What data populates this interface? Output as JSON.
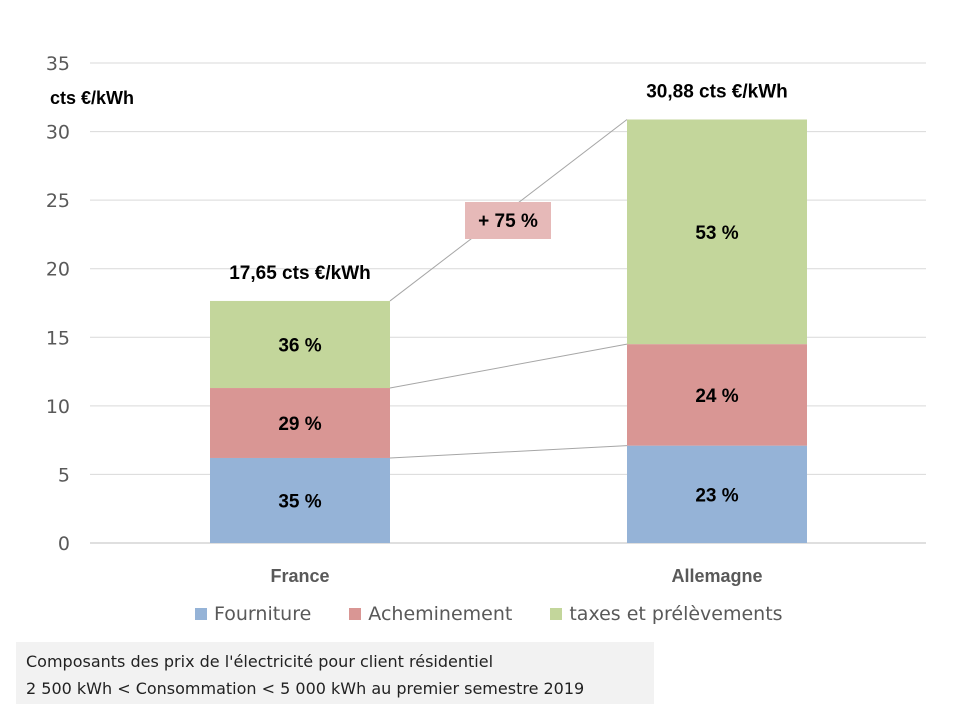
{
  "chart_data": {
    "type": "bar",
    "stacked": true,
    "categories": [
      "France",
      "Allemagne"
    ],
    "series": [
      {
        "name": "Fourniture",
        "color": "#95b3d7",
        "values": [
          6.2,
          7.1
        ],
        "labels": [
          "35 %",
          "23 %"
        ]
      },
      {
        "name": "Acheminement",
        "color": "#d99694",
        "values": [
          5.1,
          7.4
        ],
        "labels": [
          "29 %",
          "24 %"
        ]
      },
      {
        "name": "taxes et prélèvements",
        "color": "#c3d69b",
        "values": [
          6.35,
          16.38
        ],
        "labels": [
          "36 %",
          "53 %"
        ]
      }
    ],
    "totals": [
      17.65,
      30.88
    ],
    "total_labels": [
      "17,65 cts €/kWh",
      "30,88 cts €/kWh"
    ],
    "ylabel": "cts €/kWh",
    "ylim": [
      0,
      35
    ],
    "yticks": [
      "0",
      "5",
      "10",
      "15",
      "20",
      "25",
      "30",
      "35"
    ],
    "grid": true,
    "legend_position": "bottom",
    "annotation": {
      "text": "+ 75 %",
      "color": "#e6b9b8"
    }
  },
  "note": {
    "line1": "Composants des prix de l'électricité pour client résidentiel",
    "line2": "2 500 kWh < Consommation < 5 000 kWh au premier semestre 2019"
  }
}
